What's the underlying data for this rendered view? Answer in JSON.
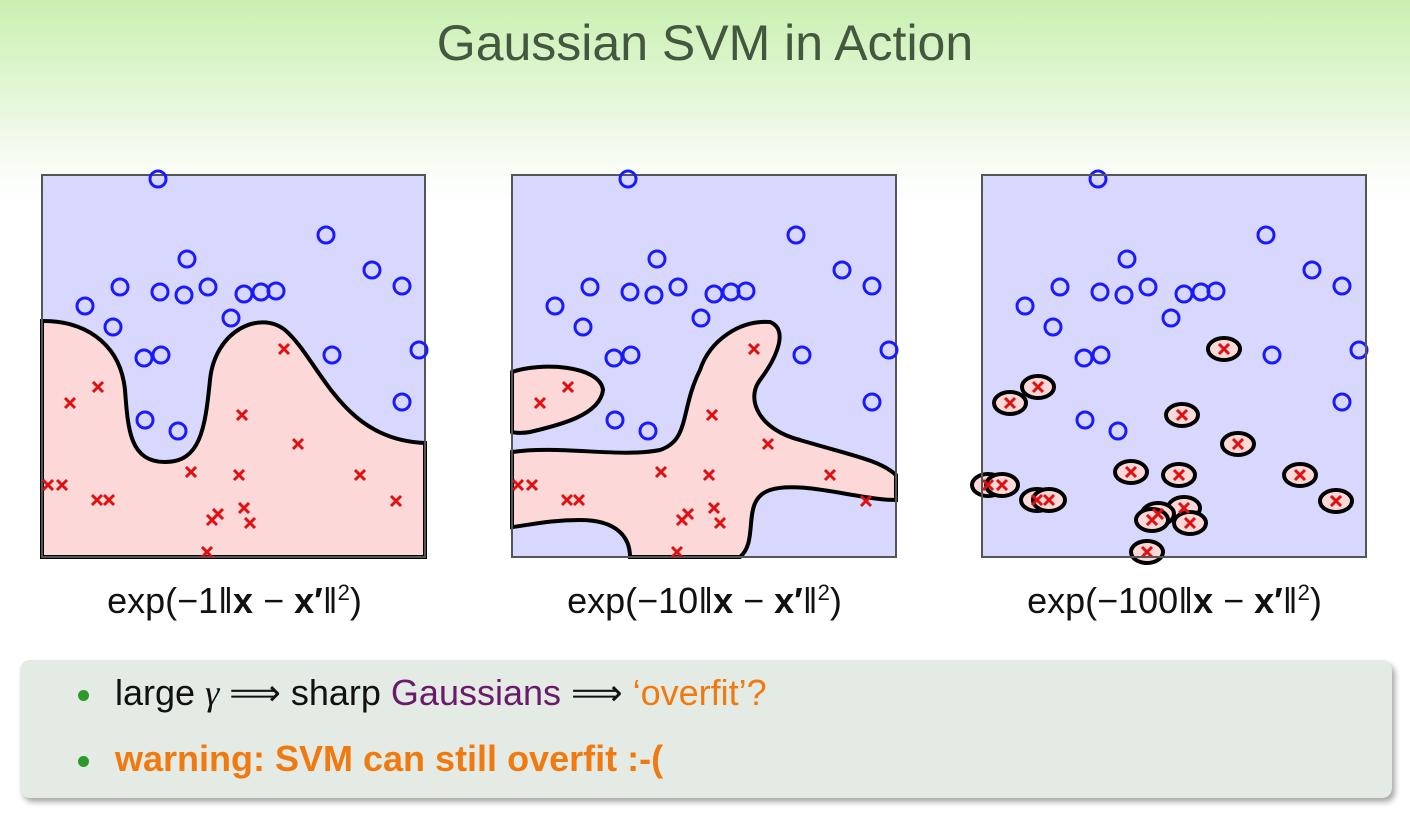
{
  "title": "Gaussian SVM in Action",
  "panels": [
    {
      "prefix": "exp(−1‖",
      "x": "x",
      "minus": " − ",
      "x_prime": "x′",
      "norm_close": "‖",
      "power": "2",
      "close": ")"
    },
    {
      "prefix": "exp(−10‖",
      "x": "x",
      "minus": " − ",
      "x_prime": "x′",
      "norm_close": "‖",
      "power": "2",
      "close": ")"
    },
    {
      "prefix": "exp(−100‖",
      "x": "x",
      "minus": " − ",
      "x_prime": "x′",
      "norm_close": "‖",
      "power": "2",
      "close": ")"
    }
  ],
  "bullets": [
    [
      "large ",
      "γ",
      " ⟹ sharp ",
      "Gaussians",
      " ⟹ ",
      "‘overfit’?"
    ],
    [
      "warning: SVM can still overfit :-("
    ]
  ]
}
